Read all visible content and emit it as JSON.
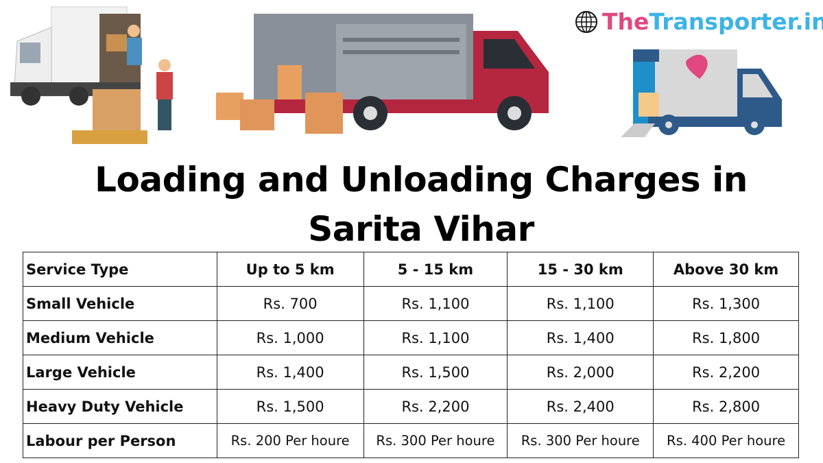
{
  "brand": {
    "part1": "The",
    "part2": "Transporter.in",
    "icon": "globe-icon",
    "colors": {
      "the": "#e0487f",
      "transporter": "#3cb4e5"
    }
  },
  "title": {
    "line1": "Loading and Unloading Charges in",
    "line2": "Sarita Vihar"
  },
  "table": {
    "headers": [
      "Service Type",
      "Up to 5 km",
      "5 - 15 km",
      "15 - 30 km",
      "Above 30 km"
    ],
    "rows": [
      [
        "Small Vehicle",
        "Rs. 700",
        "Rs. 1,100",
        "Rs. 1,100",
        "Rs. 1,300"
      ],
      [
        "Medium Vehicle",
        "Rs. 1,000",
        "Rs. 1,100",
        "Rs. 1,400",
        "Rs. 1,800"
      ],
      [
        "Large Vehicle",
        "Rs. 1,400",
        "Rs. 1,500",
        "Rs. 2,000",
        "Rs. 2,200"
      ],
      [
        "Heavy Duty Vehicle",
        "Rs. 1,500",
        "Rs. 2,200",
        "Rs. 2,400",
        "Rs. 2,800"
      ],
      [
        "Labour per Person",
        "Rs. 200 Per houre",
        "Rs. 300 Per houre",
        "Rs. 300 Per houre",
        "Rs. 400 Per houre"
      ]
    ]
  }
}
